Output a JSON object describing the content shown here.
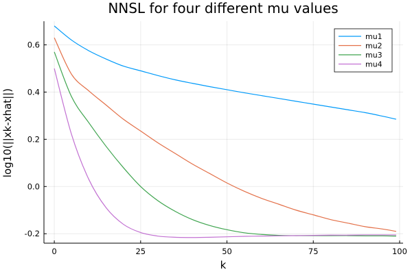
{
  "chart_data": {
    "type": "line",
    "title": "NNSL for four different mu values",
    "xlabel": "k",
    "ylabel": "log10(||xk-xhat||)",
    "xlim": [
      -3,
      101
    ],
    "ylim": [
      -0.24,
      0.7
    ],
    "xticks": [
      0,
      25,
      50,
      75,
      100
    ],
    "yticks": [
      -0.2,
      0.0,
      0.2,
      0.4,
      0.6
    ],
    "xtick_labels": [
      "0",
      "25",
      "50",
      "75",
      "100"
    ],
    "ytick_labels": [
      "-0.2",
      "0.0",
      "0.2",
      "0.4",
      "0.6"
    ],
    "grid": true,
    "legend_position": "top-right",
    "x": [
      0,
      5,
      10,
      15,
      20,
      25,
      30,
      35,
      40,
      45,
      50,
      55,
      60,
      65,
      70,
      75,
      80,
      85,
      90,
      95,
      99
    ],
    "series": [
      {
        "name": "mu1",
        "color": "#009AFA",
        "values": [
          0.68,
          0.62,
          0.575,
          0.54,
          0.51,
          0.49,
          0.47,
          0.452,
          0.437,
          0.423,
          0.41,
          0.397,
          0.385,
          0.373,
          0.361,
          0.349,
          0.337,
          0.325,
          0.313,
          0.298,
          0.285
        ]
      },
      {
        "name": "mu2",
        "color": "#E36F47",
        "values": [
          0.63,
          0.475,
          0.405,
          0.345,
          0.285,
          0.235,
          0.185,
          0.14,
          0.095,
          0.055,
          0.015,
          -0.02,
          -0.05,
          -0.075,
          -0.1,
          -0.12,
          -0.14,
          -0.155,
          -0.17,
          -0.18,
          -0.19
        ]
      },
      {
        "name": "mu3",
        "color": "#3EA44E",
        "values": [
          0.57,
          0.38,
          0.27,
          0.17,
          0.08,
          0.0,
          -0.06,
          -0.105,
          -0.14,
          -0.165,
          -0.183,
          -0.196,
          -0.203,
          -0.207,
          -0.208,
          -0.208,
          -0.208,
          -0.208,
          -0.209,
          -0.209,
          -0.21
        ]
      },
      {
        "name": "mu4",
        "color": "#C271D2",
        "values": [
          0.5,
          0.22,
          0.03,
          -0.09,
          -0.16,
          -0.195,
          -0.21,
          -0.215,
          -0.216,
          -0.215,
          -0.213,
          -0.211,
          -0.21,
          -0.209,
          -0.208,
          -0.207,
          -0.206,
          -0.206,
          -0.205,
          -0.205,
          -0.205
        ]
      }
    ]
  }
}
